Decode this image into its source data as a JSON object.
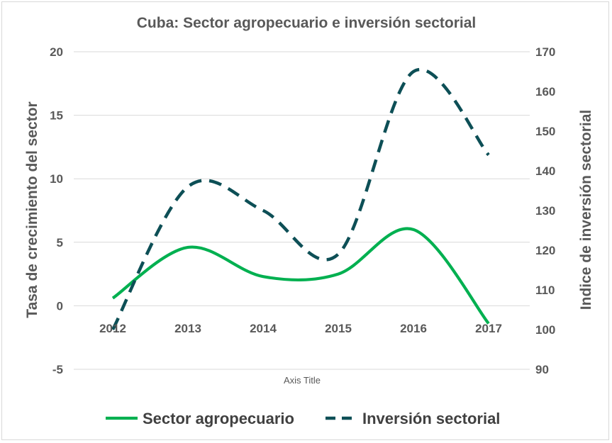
{
  "chart_data": {
    "type": "line",
    "title": "Cuba: Sector agropecuario e inversión sectorial",
    "xlabel": "Axis Title",
    "ylabel": "Tasa de crecimiento del sector",
    "y2label": "Indice de inversión sectorial",
    "categories": [
      "2012",
      "2013",
      "2014",
      "2015",
      "2016",
      "2017"
    ],
    "ylim": [
      -5,
      20
    ],
    "yticks": [
      -5,
      0,
      5,
      10,
      15,
      20
    ],
    "y2lim": [
      90,
      170
    ],
    "y2ticks": [
      90,
      100,
      110,
      120,
      130,
      140,
      150,
      160,
      170
    ],
    "grid": true,
    "legend_position": "bottom",
    "series": [
      {
        "name": "Sector agropecuario",
        "axis": "left",
        "color": "#00b050",
        "style": "solid",
        "values": [
          0.6,
          4.6,
          2.3,
          2.5,
          6.0,
          -1.4
        ]
      },
      {
        "name": "Inversión sectorial",
        "axis": "right",
        "color": "#0d4f56",
        "style": "dashed",
        "values": [
          100,
          136,
          130,
          119,
          165,
          144
        ]
      }
    ]
  }
}
